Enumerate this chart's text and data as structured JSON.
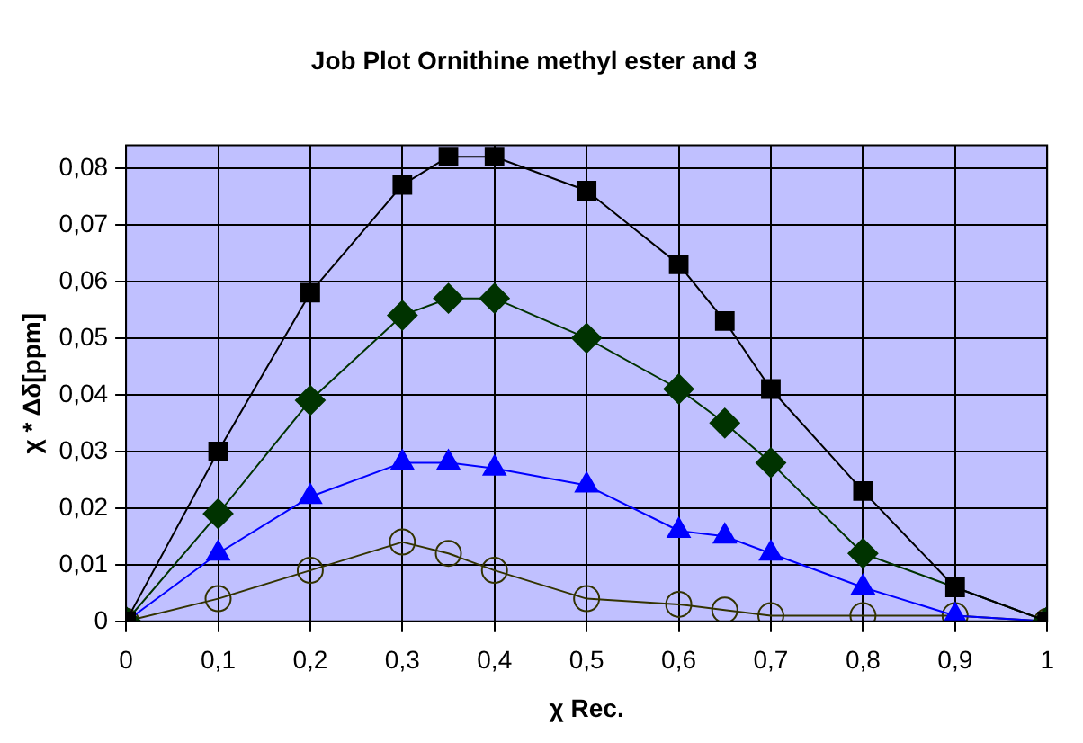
{
  "chart_data": {
    "type": "line",
    "title": "Job Plot Ornithine methyl ester and 3",
    "xlabel": "χ Rec.",
    "ylabel": "χ * Δδ[ppm]",
    "x": [
      0,
      0.1,
      0.2,
      0.3,
      0.35,
      0.4,
      0.5,
      0.6,
      0.65,
      0.7,
      0.8,
      0.9,
      1
    ],
    "series": [
      {
        "color": "#000000",
        "marker": "square",
        "values": [
          0,
          0.03,
          0.058,
          0.077,
          0.082,
          0.082,
          0.076,
          0.063,
          0.053,
          0.041,
          0.023,
          0.006,
          0
        ]
      },
      {
        "color": "#003300",
        "marker": "diamond",
        "values": [
          0,
          0.019,
          0.039,
          0.054,
          0.057,
          0.057,
          0.05,
          0.041,
          0.035,
          0.028,
          0.012,
          null,
          0
        ]
      },
      {
        "color": "#0000ff",
        "marker": "triangle",
        "values": [
          0,
          0.012,
          0.022,
          0.028,
          0.028,
          0.027,
          0.024,
          0.016,
          0.015,
          0.012,
          0.006,
          0.001,
          0
        ]
      },
      {
        "color": "#333300",
        "marker": "circle",
        "values": [
          0,
          0.004,
          0.009,
          0.014,
          0.012,
          0.009,
          0.004,
          0.003,
          0.002,
          0.001,
          0.001,
          0.001,
          0
        ]
      }
    ],
    "xlim": [
      0,
      1
    ],
    "xticks": [
      0,
      {
        "value": 0.1,
        "label": "0,1"
      },
      {
        "value": 0.2,
        "label": "0,2"
      },
      {
        "value": 0.3,
        "label": "0,3"
      },
      {
        "value": 0.4,
        "label": "0,4"
      },
      {
        "value": 0.5,
        "label": "0,5"
      },
      {
        "value": 0.6,
        "label": "0,6"
      },
      {
        "value": 0.7,
        "label": "0,7"
      },
      {
        "value": 0.8,
        "label": "0,8"
      },
      {
        "value": 0.9,
        "label": "0,9"
      },
      1
    ],
    "ylim": [
      0,
      0.084
    ],
    "yticks": [
      0,
      {
        "value": 0.01,
        "label": "0,01"
      },
      {
        "value": 0.02,
        "label": "0,02"
      },
      {
        "value": 0.03,
        "label": "0,03"
      },
      {
        "value": 0.04,
        "label": "0,04"
      },
      {
        "value": 0.05,
        "label": "0,05"
      },
      {
        "value": 0.06,
        "label": "0,06"
      },
      {
        "value": 0.07,
        "label": "0,07"
      },
      {
        "value": 0.08,
        "label": "0,08"
      }
    ],
    "grid": true,
    "legend": false,
    "line_style": "solid"
  }
}
